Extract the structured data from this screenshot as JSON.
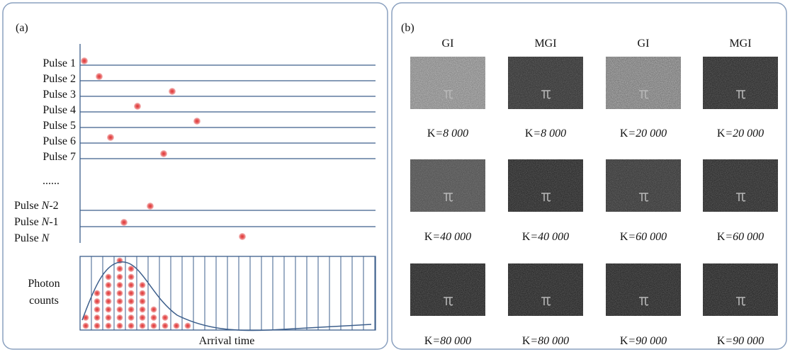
{
  "panel_a": {
    "label": "(a)",
    "pulses": [
      [
        "Pulse 1"
      ],
      [
        "Pulse 2"
      ],
      [
        "Pulse 3"
      ],
      [
        "Pulse 4"
      ],
      [
        "Pulse 5"
      ],
      [
        "Pulse 6"
      ],
      [
        "Pulse 7"
      ],
      [
        "Pulse ",
        "N",
        "-2"
      ],
      [
        "Pulse ",
        "N",
        "-1"
      ],
      [
        "Pulse ",
        "N"
      ]
    ],
    "ellipsis": "......",
    "y_label": [
      "Photon",
      "counts"
    ],
    "x_label": "Arrival time"
  },
  "panel_b": {
    "label": "(b)",
    "column_headers": [
      "GI",
      "MGI",
      "GI",
      "MGI"
    ],
    "rows": [
      {
        "labels": [
          [
            "K",
            "=8 000"
          ],
          [
            "K",
            "=8 000"
          ],
          [
            "K",
            "=20 000"
          ],
          [
            "K",
            "=20 000"
          ]
        ]
      },
      {
        "labels": [
          [
            "K",
            "=40 000"
          ],
          [
            "K",
            "=40 000"
          ],
          [
            "K",
            "=60 000"
          ],
          [
            "K",
            "=60 000"
          ]
        ]
      },
      {
        "labels": [
          [
            "K",
            "=80 000"
          ],
          [
            "K",
            "=80 000"
          ],
          [
            "K",
            "=90 000"
          ],
          [
            "K",
            "=90 000"
          ]
        ]
      }
    ]
  }
}
